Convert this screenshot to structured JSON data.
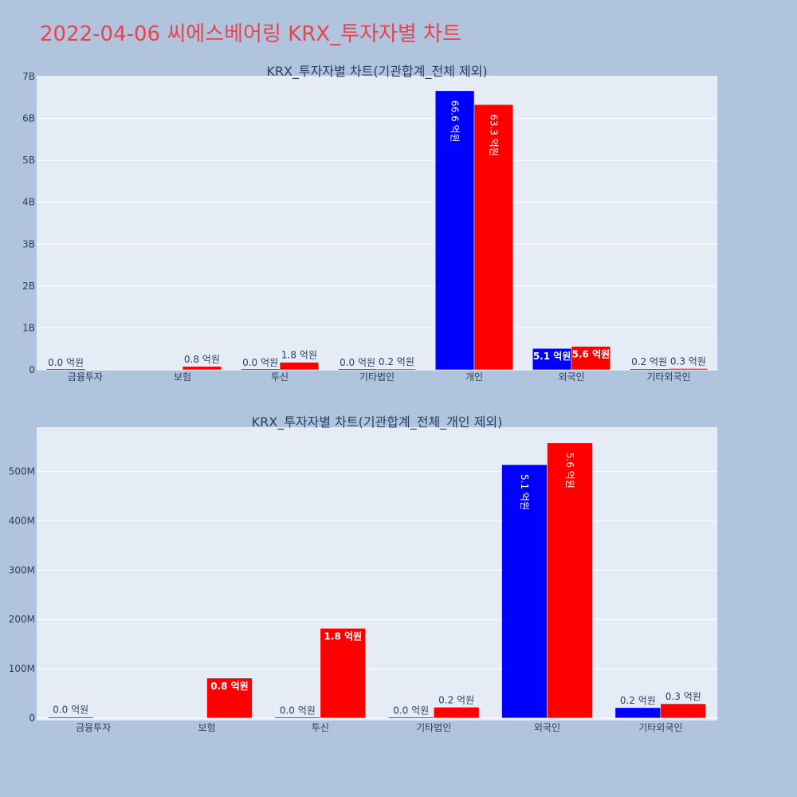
{
  "page_title": "2022-04-06 씨에스베어링 KRX_투자자별 차트",
  "colors": {
    "buy": "#0000ff",
    "sell": "#ff0000",
    "plot_bg": "#e5ecf6",
    "page_bg": "#b0c4de",
    "title": "#e8434f"
  },
  "chart_data": [
    {
      "type": "bar",
      "title": "KRX_투자자별 차트(기관합계_전체 제외)",
      "categories": [
        "금융투자",
        "보험",
        "투신",
        "기타법인",
        "개인",
        "외국인",
        "기타외국인"
      ],
      "ylim": [
        0,
        7000000000
      ],
      "yticks": [
        0,
        1000000000,
        2000000000,
        3000000000,
        4000000000,
        5000000000,
        6000000000,
        7000000000
      ],
      "yticklabels": [
        "0",
        "1B",
        "2B",
        "3B",
        "4B",
        "5B",
        "6B",
        "7B"
      ],
      "grid": true,
      "series": [
        {
          "color": "#0000ff",
          "values": [
            0,
            null,
            0,
            0,
            6660000000,
            510000000,
            20000000
          ],
          "labels": [
            "0.0 억원",
            "",
            "0.0 억원",
            "0.0 억원",
            "66.6 억원",
            "5.1 억원",
            "0.2 억원"
          ]
        },
        {
          "color": "#ff0000",
          "values": [
            null,
            80000000,
            180000000,
            20000000,
            6330000000,
            560000000,
            30000000
          ],
          "labels": [
            "",
            "0.8 억원",
            "1.8 억원",
            "0.2 억원",
            "63.3 억원",
            "5.6 억원",
            "0.3 억원"
          ]
        }
      ]
    },
    {
      "type": "bar",
      "title": "KRX_투자자별 차트(기관합계_전체_개인 제외)",
      "categories": [
        "금융투자",
        "보험",
        "투신",
        "기타법인",
        "외국인",
        "기타외국인"
      ],
      "ylim": [
        -5000000,
        590000000
      ],
      "yticks": [
        0,
        100000000,
        200000000,
        300000000,
        400000000,
        500000000
      ],
      "yticklabels": [
        "0",
        "100M",
        "200M",
        "300M",
        "400M",
        "500M"
      ],
      "grid": true,
      "series": [
        {
          "color": "#0000ff",
          "values": [
            2000000,
            null,
            1000000,
            1000000,
            514000000,
            21000000
          ],
          "labels": [
            "0.0 억원",
            "",
            "0.0 억원",
            "0.0 억원",
            "5.1 억원",
            "0.2 억원"
          ]
        },
        {
          "color": "#ff0000",
          "values": [
            null,
            81000000,
            182000000,
            22000000,
            558000000,
            29000000
          ],
          "labels": [
            "",
            "0.8 억원",
            "1.8 억원",
            "0.2 억원",
            "5.6 억원",
            "0.3 억원"
          ]
        }
      ]
    }
  ]
}
